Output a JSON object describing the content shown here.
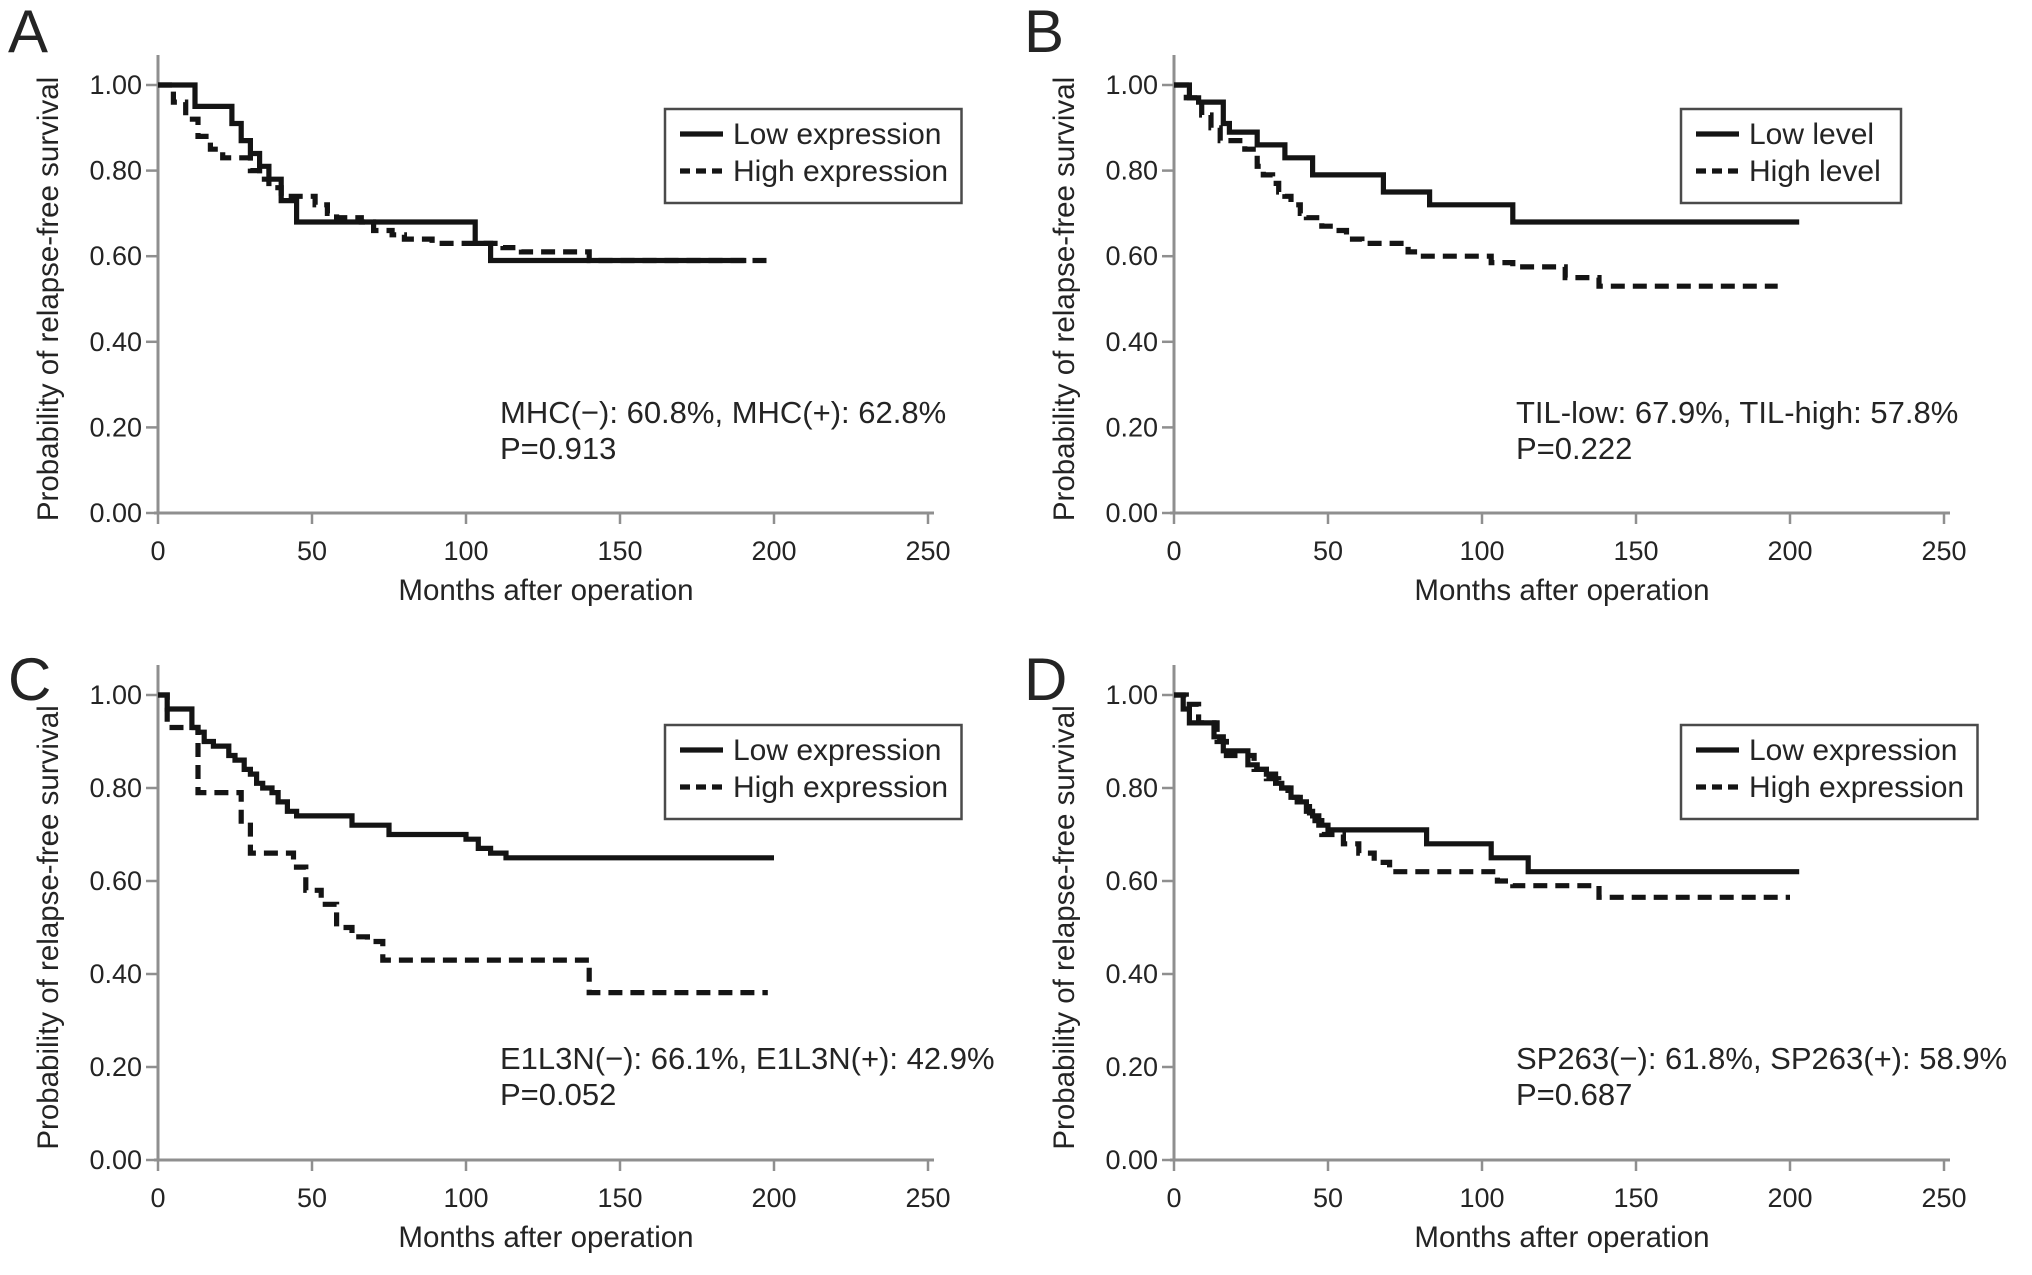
{
  "figure": {
    "background": "#ffffff",
    "text_color": "#242424",
    "axis_color": "#8f8f8f",
    "curve_color": "#141414",
    "legend_border_color": "#4a4a4a"
  },
  "chart_data": [
    {
      "panel": "A",
      "type": "line",
      "subtype": "kaplan_meier_step",
      "xlabel": "Months after operation",
      "ylabel": "Probability of relapse-free survival",
      "xlim": [
        0,
        250
      ],
      "ylim": [
        0.0,
        1.0
      ],
      "xticks": [
        "0",
        "50",
        "100",
        "150",
        "200",
        "250"
      ],
      "ytick_labels": [
        "1.00",
        "0.80",
        "0.60",
        "0.40",
        "0.20",
        "0.00"
      ],
      "grid": false,
      "legend_position": "top-right",
      "legend": [
        {
          "label": "Low expression",
          "style": "solid"
        },
        {
          "label": "High expression",
          "style": "dashed"
        }
      ],
      "annotation": {
        "line1": "MHC(−): 60.8%, MHC(+): 62.8%",
        "line2": "P=0.913"
      },
      "series": [
        {
          "name": "High expression",
          "style": "dashed",
          "points": [
            [
              0,
              1.0
            ],
            [
              5,
              0.96
            ],
            [
              9,
              0.92
            ],
            [
              13,
              0.88
            ],
            [
              17,
              0.85
            ],
            [
              21,
              0.83
            ],
            [
              30,
              0.8
            ],
            [
              33,
              0.78
            ],
            [
              36,
              0.76
            ],
            [
              40,
              0.74
            ],
            [
              51,
              0.72
            ],
            [
              55,
              0.7
            ],
            [
              58,
              0.69
            ],
            [
              66,
              0.68
            ],
            [
              70,
              0.66
            ],
            [
              76,
              0.65
            ],
            [
              80,
              0.64
            ],
            [
              89,
              0.63
            ],
            [
              112,
              0.62
            ],
            [
              118,
              0.61
            ],
            [
              140,
              0.59
            ],
            [
              199,
              0.59
            ]
          ]
        },
        {
          "name": "Low expression",
          "style": "solid",
          "points": [
            [
              0,
              1.0
            ],
            [
              12,
              0.95
            ],
            [
              24,
              0.91
            ],
            [
              27,
              0.87
            ],
            [
              30,
              0.84
            ],
            [
              33,
              0.81
            ],
            [
              36,
              0.78
            ],
            [
              40,
              0.73
            ],
            [
              45,
              0.68
            ],
            [
              103,
              0.63
            ],
            [
              108,
              0.59
            ],
            [
              191,
              0.59
            ]
          ]
        }
      ]
    },
    {
      "panel": "B",
      "type": "line",
      "subtype": "kaplan_meier_step",
      "xlabel": "Months after operation",
      "ylabel": "Probability of relapse-free survival",
      "xlim": [
        0,
        250
      ],
      "ylim": [
        0.0,
        1.0
      ],
      "xticks": [
        "0",
        "50",
        "100",
        "150",
        "200",
        "250"
      ],
      "ytick_labels": [
        "1.00",
        "0.80",
        "0.60",
        "0.40",
        "0.20",
        "0.00"
      ],
      "grid": false,
      "legend_position": "top-right",
      "legend": [
        {
          "label": "Low level",
          "style": "solid"
        },
        {
          "label": "High level",
          "style": "dashed"
        }
      ],
      "annotation": {
        "line1": "TIL-low: 67.9%, TIL-high: 57.8%",
        "line2": "P=0.222"
      },
      "series": [
        {
          "name": "High level",
          "style": "dashed",
          "points": [
            [
              0,
              1.0
            ],
            [
              4,
              0.97
            ],
            [
              9,
              0.93
            ],
            [
              12,
              0.9
            ],
            [
              15,
              0.87
            ],
            [
              23,
              0.85
            ],
            [
              27,
              0.81
            ],
            [
              29,
              0.79
            ],
            [
              32,
              0.77
            ],
            [
              34,
              0.75
            ],
            [
              36,
              0.74
            ],
            [
              38,
              0.72
            ],
            [
              41,
              0.7
            ],
            [
              43,
              0.69
            ],
            [
              48,
              0.67
            ],
            [
              52,
              0.66
            ],
            [
              56,
              0.64
            ],
            [
              61,
              0.63
            ],
            [
              76,
              0.61
            ],
            [
              80,
              0.6
            ],
            [
              103,
              0.585
            ],
            [
              110,
              0.575
            ],
            [
              127,
              0.55
            ],
            [
              138,
              0.53
            ],
            [
              196,
              0.53
            ]
          ]
        },
        {
          "name": "Low level",
          "style": "solid",
          "points": [
            [
              0,
              1.0
            ],
            [
              5,
              0.97
            ],
            [
              8,
              0.96
            ],
            [
              16,
              0.91
            ],
            [
              18,
              0.89
            ],
            [
              27,
              0.86
            ],
            [
              36,
              0.83
            ],
            [
              45,
              0.79
            ],
            [
              68,
              0.75
            ],
            [
              83,
              0.72
            ],
            [
              110,
              0.68
            ],
            [
              203,
              0.68
            ]
          ]
        }
      ]
    },
    {
      "panel": "C",
      "type": "line",
      "subtype": "kaplan_meier_step",
      "xlabel": "Months after operation",
      "ylabel": "Probability of relapse-free survival",
      "xlim": [
        0,
        250
      ],
      "ylim": [
        0.0,
        1.0
      ],
      "xticks": [
        "0",
        "50",
        "100",
        "150",
        "200",
        "250"
      ],
      "ytick_labels": [
        "1.00",
        "0.80",
        "0.60",
        "0.40",
        "0.20",
        "0.00"
      ],
      "grid": false,
      "legend_position": "top-right",
      "legend": [
        {
          "label": "Low expression",
          "style": "solid"
        },
        {
          "label": "High expression",
          "style": "dashed"
        }
      ],
      "annotation": {
        "line1": "E1L3N(−): 66.1%, E1L3N(+): 42.9%",
        "line2": "P=0.052"
      },
      "series": [
        {
          "name": "High expression",
          "style": "dashed",
          "points": [
            [
              0,
              1.0
            ],
            [
              3,
              0.93
            ],
            [
              13,
              0.79
            ],
            [
              27,
              0.72
            ],
            [
              30,
              0.66
            ],
            [
              44,
              0.63
            ],
            [
              48,
              0.58
            ],
            [
              53,
              0.55
            ],
            [
              58,
              0.5
            ],
            [
              63,
              0.48
            ],
            [
              68,
              0.47
            ],
            [
              73,
              0.43
            ],
            [
              138,
              0.43
            ],
            [
              140,
              0.36
            ],
            [
              198,
              0.36
            ]
          ]
        },
        {
          "name": "Low expression",
          "style": "solid",
          "points": [
            [
              0,
              1.0
            ],
            [
              3,
              0.97
            ],
            [
              11,
              0.93
            ],
            [
              13,
              0.92
            ],
            [
              15,
              0.9
            ],
            [
              18,
              0.89
            ],
            [
              23,
              0.87
            ],
            [
              25,
              0.86
            ],
            [
              28,
              0.84
            ],
            [
              30,
              0.83
            ],
            [
              32,
              0.81
            ],
            [
              34,
              0.8
            ],
            [
              37,
              0.79
            ],
            [
              39,
              0.77
            ],
            [
              42,
              0.75
            ],
            [
              45,
              0.74
            ],
            [
              63,
              0.72
            ],
            [
              75,
              0.7
            ],
            [
              100,
              0.69
            ],
            [
              104,
              0.67
            ],
            [
              108,
              0.66
            ],
            [
              113,
              0.65
            ],
            [
              200,
              0.65
            ]
          ]
        }
      ]
    },
    {
      "panel": "D",
      "type": "line",
      "subtype": "kaplan_meier_step",
      "xlabel": "Months after operation",
      "ylabel": "Probability of relapse-free survival",
      "xlim": [
        0,
        250
      ],
      "ylim": [
        0.0,
        1.0
      ],
      "xticks": [
        "0",
        "50",
        "100",
        "150",
        "200",
        "250"
      ],
      "ytick_labels": [
        "1.00",
        "0.80",
        "0.60",
        "0.40",
        "0.20",
        "0.00"
      ],
      "grid": false,
      "legend_position": "top-right",
      "legend": [
        {
          "label": "Low expression",
          "style": "solid"
        },
        {
          "label": "High expression",
          "style": "dashed"
        }
      ],
      "annotation": {
        "line1": "SP263(−): 61.8%, SP263(+): 58.9%",
        "line2": "P=0.687"
      },
      "series": [
        {
          "name": "High expression",
          "style": "dashed",
          "points": [
            [
              0,
              1.0
            ],
            [
              4,
              0.98
            ],
            [
              8,
              0.94
            ],
            [
              14,
              0.9
            ],
            [
              17,
              0.87
            ],
            [
              26,
              0.84
            ],
            [
              30,
              0.82
            ],
            [
              34,
              0.8
            ],
            [
              37,
              0.78
            ],
            [
              41,
              0.76
            ],
            [
              44,
              0.73
            ],
            [
              48,
              0.7
            ],
            [
              55,
              0.68
            ],
            [
              60,
              0.66
            ],
            [
              65,
              0.64
            ],
            [
              70,
              0.62
            ],
            [
              105,
              0.6
            ],
            [
              110,
              0.59
            ],
            [
              138,
              0.565
            ],
            [
              200,
              0.565
            ]
          ]
        },
        {
          "name": "Low expression",
          "style": "solid",
          "points": [
            [
              0,
              1.0
            ],
            [
              3,
              0.97
            ],
            [
              5,
              0.94
            ],
            [
              13,
              0.91
            ],
            [
              16,
              0.88
            ],
            [
              24,
              0.85
            ],
            [
              27,
              0.84
            ],
            [
              30,
              0.83
            ],
            [
              33,
              0.81
            ],
            [
              35,
              0.8
            ],
            [
              38,
              0.78
            ],
            [
              40,
              0.77
            ],
            [
              43,
              0.75
            ],
            [
              45,
              0.74
            ],
            [
              47,
              0.72
            ],
            [
              50,
              0.71
            ],
            [
              82,
              0.68
            ],
            [
              103,
              0.65
            ],
            [
              115,
              0.62
            ],
            [
              203,
              0.62
            ]
          ]
        }
      ]
    }
  ]
}
